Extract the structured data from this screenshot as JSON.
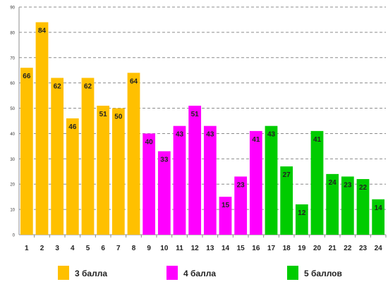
{
  "chart_data": {
    "type": "bar",
    "categories": [
      "1",
      "2",
      "3",
      "4",
      "5",
      "6",
      "7",
      "8",
      "9",
      "10",
      "11",
      "12",
      "13",
      "14",
      "15",
      "16",
      "17",
      "18",
      "19",
      "20",
      "21",
      "22",
      "23",
      "24"
    ],
    "values": [
      66,
      84,
      62,
      46,
      62,
      51,
      50,
      64,
      40,
      33,
      43,
      51,
      43,
      15,
      23,
      41,
      43,
      27,
      12,
      41,
      24,
      23,
      22,
      14
    ],
    "groups": [
      0,
      0,
      0,
      0,
      0,
      0,
      0,
      0,
      1,
      1,
      1,
      1,
      1,
      1,
      1,
      1,
      2,
      2,
      2,
      2,
      2,
      2,
      2,
      2
    ],
    "ylim": [
      0,
      90
    ],
    "yticks": [
      0,
      10,
      20,
      30,
      40,
      50,
      60,
      70,
      80,
      90
    ],
    "grid": true,
    "legend_position": "bottom",
    "legend": [
      {
        "name": "3 балла",
        "color": "#FFC000"
      },
      {
        "name": "4 балла",
        "color": "#FF00FF"
      },
      {
        "name": "5 баллов",
        "color": "#00CC00"
      }
    ]
  }
}
